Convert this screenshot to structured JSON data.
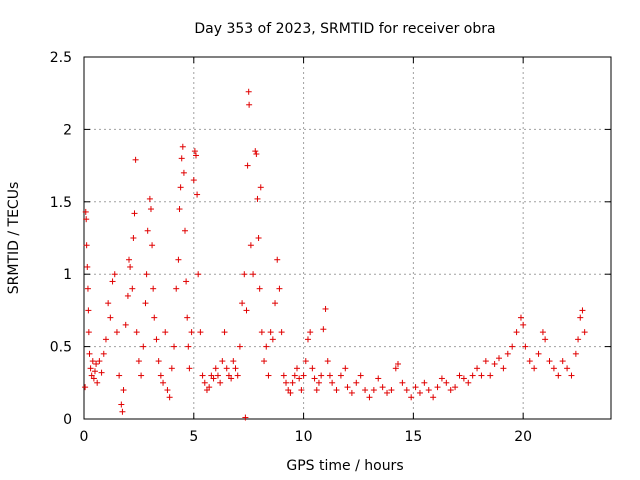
{
  "chart_data": {
    "type": "scatter",
    "title": "Day 353 of 2023, SRMTID for receiver obra",
    "xlabel": "GPS time / hours",
    "ylabel": "SRMTID / TECUs",
    "xlim": [
      0,
      24
    ],
    "ylim": [
      0,
      2.5
    ],
    "x_ticks": [
      0,
      5,
      10,
      15,
      20
    ],
    "x_tick_labels": [
      "0",
      "5",
      "10",
      "15",
      "20"
    ],
    "y_ticks": [
      0,
      0.5,
      1,
      1.5,
      2,
      2.5
    ],
    "y_tick_labels": [
      "0",
      "0.5",
      "1",
      "1.5",
      "2",
      "2.5"
    ],
    "grid": true,
    "marker": "+",
    "series_color": "#e00000",
    "series": [
      {
        "name": "SRMTID",
        "points": [
          [
            0.05,
            0.22
          ],
          [
            0.08,
            1.43
          ],
          [
            0.1,
            1.38
          ],
          [
            0.12,
            1.2
          ],
          [
            0.15,
            1.05
          ],
          [
            0.18,
            0.9
          ],
          [
            0.2,
            0.75
          ],
          [
            0.22,
            0.6
          ],
          [
            0.25,
            0.45
          ],
          [
            0.3,
            0.35
          ],
          [
            0.35,
            0.3
          ],
          [
            0.4,
            0.4
          ],
          [
            0.45,
            0.28
          ],
          [
            0.5,
            0.33
          ],
          [
            0.55,
            0.38
          ],
          [
            0.6,
            0.25
          ],
          [
            0.7,
            0.4
          ],
          [
            0.8,
            0.32
          ],
          [
            0.9,
            0.45
          ],
          [
            1.0,
            0.55
          ],
          [
            1.1,
            0.8
          ],
          [
            1.2,
            0.7
          ],
          [
            1.3,
            0.95
          ],
          [
            1.4,
            1.0
          ],
          [
            1.5,
            0.6
          ],
          [
            1.6,
            0.3
          ],
          [
            1.7,
            0.1
          ],
          [
            1.75,
            0.05
          ],
          [
            1.8,
            0.2
          ],
          [
            1.9,
            0.65
          ],
          [
            2.0,
            0.85
          ],
          [
            2.05,
            1.1
          ],
          [
            2.1,
            1.05
          ],
          [
            2.2,
            0.9
          ],
          [
            2.25,
            1.25
          ],
          [
            2.3,
            1.42
          ],
          [
            2.35,
            1.79
          ],
          [
            2.4,
            0.6
          ],
          [
            2.5,
            0.4
          ],
          [
            2.6,
            0.3
          ],
          [
            2.7,
            0.5
          ],
          [
            2.8,
            0.8
          ],
          [
            2.85,
            1.0
          ],
          [
            2.9,
            1.3
          ],
          [
            3.0,
            1.52
          ],
          [
            3.05,
            1.45
          ],
          [
            3.1,
            1.2
          ],
          [
            3.15,
            0.9
          ],
          [
            3.2,
            0.7
          ],
          [
            3.3,
            0.55
          ],
          [
            3.4,
            0.4
          ],
          [
            3.5,
            0.3
          ],
          [
            3.6,
            0.25
          ],
          [
            3.7,
            0.6
          ],
          [
            3.8,
            0.2
          ],
          [
            3.9,
            0.15
          ],
          [
            4.0,
            0.35
          ],
          [
            4.1,
            0.5
          ],
          [
            4.2,
            0.9
          ],
          [
            4.3,
            1.1
          ],
          [
            4.35,
            1.45
          ],
          [
            4.4,
            1.6
          ],
          [
            4.45,
            1.8
          ],
          [
            4.5,
            1.88
          ],
          [
            4.55,
            1.7
          ],
          [
            4.6,
            1.3
          ],
          [
            4.65,
            0.95
          ],
          [
            4.7,
            0.7
          ],
          [
            4.75,
            0.5
          ],
          [
            4.8,
            0.35
          ],
          [
            4.9,
            0.6
          ],
          [
            5.0,
            1.65
          ],
          [
            5.05,
            1.85
          ],
          [
            5.1,
            1.82
          ],
          [
            5.15,
            1.55
          ],
          [
            5.2,
            1.0
          ],
          [
            5.3,
            0.6
          ],
          [
            5.4,
            0.3
          ],
          [
            5.5,
            0.25
          ],
          [
            5.6,
            0.2
          ],
          [
            5.7,
            0.22
          ],
          [
            5.8,
            0.3
          ],
          [
            5.9,
            0.28
          ],
          [
            6.0,
            0.35
          ],
          [
            6.1,
            0.3
          ],
          [
            6.2,
            0.25
          ],
          [
            6.3,
            0.4
          ],
          [
            6.4,
            0.6
          ],
          [
            6.5,
            0.35
          ],
          [
            6.6,
            0.3
          ],
          [
            6.7,
            0.28
          ],
          [
            6.8,
            0.4
          ],
          [
            6.9,
            0.35
          ],
          [
            7.0,
            0.3
          ],
          [
            7.1,
            0.5
          ],
          [
            7.2,
            0.8
          ],
          [
            7.3,
            1.0
          ],
          [
            7.35,
            0.01
          ],
          [
            7.4,
            0.75
          ],
          [
            7.45,
            1.75
          ],
          [
            7.5,
            2.26
          ],
          [
            7.52,
            2.17
          ],
          [
            7.6,
            1.2
          ],
          [
            7.7,
            1.0
          ],
          [
            7.8,
            1.85
          ],
          [
            7.85,
            1.83
          ],
          [
            7.9,
            1.52
          ],
          [
            7.95,
            1.25
          ],
          [
            8.0,
            0.9
          ],
          [
            8.05,
            1.6
          ],
          [
            8.1,
            0.6
          ],
          [
            8.2,
            0.4
          ],
          [
            8.3,
            0.5
          ],
          [
            8.4,
            0.3
          ],
          [
            8.5,
            0.6
          ],
          [
            8.6,
            0.55
          ],
          [
            8.7,
            0.8
          ],
          [
            8.8,
            1.1
          ],
          [
            8.9,
            0.9
          ],
          [
            9.0,
            0.6
          ],
          [
            9.1,
            0.3
          ],
          [
            9.2,
            0.25
          ],
          [
            9.3,
            0.2
          ],
          [
            9.4,
            0.18
          ],
          [
            9.5,
            0.25
          ],
          [
            9.6,
            0.3
          ],
          [
            9.7,
            0.35
          ],
          [
            9.8,
            0.28
          ],
          [
            9.9,
            0.2
          ],
          [
            10.0,
            0.3
          ],
          [
            10.1,
            0.4
          ],
          [
            10.2,
            0.55
          ],
          [
            10.3,
            0.6
          ],
          [
            10.4,
            0.35
          ],
          [
            10.5,
            0.28
          ],
          [
            10.6,
            0.2
          ],
          [
            10.7,
            0.25
          ],
          [
            10.8,
            0.3
          ],
          [
            10.9,
            0.62
          ],
          [
            11.0,
            0.76
          ],
          [
            11.1,
            0.4
          ],
          [
            11.2,
            0.3
          ],
          [
            11.3,
            0.25
          ],
          [
            11.5,
            0.2
          ],
          [
            11.7,
            0.3
          ],
          [
            11.9,
            0.35
          ],
          [
            12.0,
            0.22
          ],
          [
            12.2,
            0.18
          ],
          [
            12.4,
            0.25
          ],
          [
            12.6,
            0.3
          ],
          [
            12.8,
            0.2
          ],
          [
            13.0,
            0.15
          ],
          [
            13.2,
            0.2
          ],
          [
            13.4,
            0.28
          ],
          [
            13.6,
            0.22
          ],
          [
            13.8,
            0.18
          ],
          [
            14.0,
            0.2
          ],
          [
            14.2,
            0.35
          ],
          [
            14.3,
            0.38
          ],
          [
            14.5,
            0.25
          ],
          [
            14.7,
            0.2
          ],
          [
            14.9,
            0.15
          ],
          [
            15.1,
            0.22
          ],
          [
            15.3,
            0.18
          ],
          [
            15.5,
            0.25
          ],
          [
            15.7,
            0.2
          ],
          [
            15.9,
            0.15
          ],
          [
            16.1,
            0.22
          ],
          [
            16.3,
            0.28
          ],
          [
            16.5,
            0.25
          ],
          [
            16.7,
            0.2
          ],
          [
            16.9,
            0.22
          ],
          [
            17.1,
            0.3
          ],
          [
            17.3,
            0.28
          ],
          [
            17.5,
            0.25
          ],
          [
            17.7,
            0.3
          ],
          [
            17.9,
            0.35
          ],
          [
            18.1,
            0.3
          ],
          [
            18.3,
            0.4
          ],
          [
            18.5,
            0.3
          ],
          [
            18.7,
            0.38
          ],
          [
            18.9,
            0.42
          ],
          [
            19.1,
            0.35
          ],
          [
            19.3,
            0.45
          ],
          [
            19.5,
            0.5
          ],
          [
            19.7,
            0.6
          ],
          [
            19.9,
            0.7
          ],
          [
            20.0,
            0.65
          ],
          [
            20.1,
            0.5
          ],
          [
            20.3,
            0.4
          ],
          [
            20.5,
            0.35
          ],
          [
            20.7,
            0.45
          ],
          [
            20.9,
            0.6
          ],
          [
            21.0,
            0.55
          ],
          [
            21.2,
            0.4
          ],
          [
            21.4,
            0.35
          ],
          [
            21.6,
            0.3
          ],
          [
            21.8,
            0.4
          ],
          [
            22.0,
            0.35
          ],
          [
            22.2,
            0.3
          ],
          [
            22.4,
            0.45
          ],
          [
            22.5,
            0.55
          ],
          [
            22.6,
            0.7
          ],
          [
            22.7,
            0.75
          ],
          [
            22.8,
            0.6
          ]
        ]
      }
    ]
  }
}
